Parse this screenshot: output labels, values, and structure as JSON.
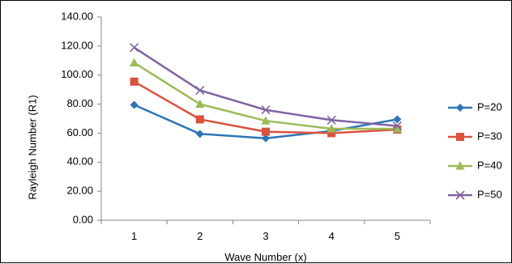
{
  "chart_data": {
    "type": "line",
    "title": "",
    "xlabel": "Wave Number (x)",
    "ylabel": "Rayleigh Number (R1)",
    "categories": [
      "1",
      "2",
      "3",
      "4",
      "5"
    ],
    "ylim": [
      0,
      140
    ],
    "yticks": [
      "0.00",
      "20.00",
      "40.00",
      "60.00",
      "80.00",
      "100.00",
      "120.00",
      "140.00"
    ],
    "grid": false,
    "legend_position": "right",
    "series": [
      {
        "name": "P=20",
        "color": "#2E75B6",
        "marker": "diamond",
        "values": [
          79.5,
          59.5,
          56.5,
          61.5,
          69.5
        ]
      },
      {
        "name": "P=30",
        "color": "#D9533F",
        "marker": "square",
        "values": [
          95.5,
          69.5,
          61,
          60,
          62.5
        ]
      },
      {
        "name": "P=40",
        "color": "#9BBB59",
        "marker": "triangle",
        "values": [
          108.5,
          80,
          68.5,
          63,
          63
        ]
      },
      {
        "name": "P=50",
        "color": "#8064A2",
        "marker": "x",
        "values": [
          119,
          89.5,
          76,
          69,
          65
        ]
      }
    ]
  }
}
